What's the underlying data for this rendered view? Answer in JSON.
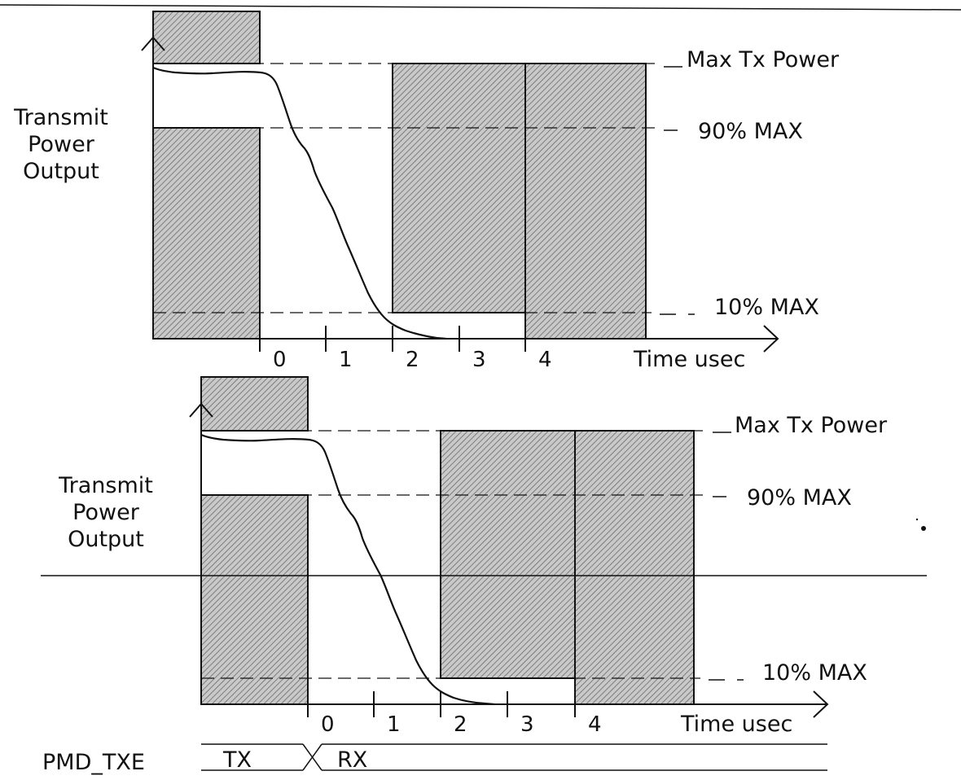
{
  "diagrams": [
    {
      "y_label": [
        "Transmit",
        "Power",
        "Output"
      ],
      "level_labels": {
        "max": "Max Tx Power",
        "p90": "90% MAX",
        "p10": "10% MAX"
      },
      "x_ticks": [
        "0",
        "1",
        "2",
        "3",
        "4"
      ],
      "x_label": "Time usec"
    },
    {
      "y_label": [
        "Transmit",
        "Power",
        "Output"
      ],
      "level_labels": {
        "max": "Max Tx Power",
        "p90": "90% MAX",
        "p10": "10% MAX"
      },
      "x_ticks": [
        "0",
        "1",
        "2",
        "3",
        "4"
      ],
      "x_label": "Time usec"
    }
  ],
  "signal": {
    "name": "PMD_TXE",
    "state_before": "TX",
    "state_after": "RX"
  },
  "colors": {
    "hatch_bg": "#c9c9c9",
    "hatch_line": "#6a6a6a",
    "ink": "#111111"
  }
}
